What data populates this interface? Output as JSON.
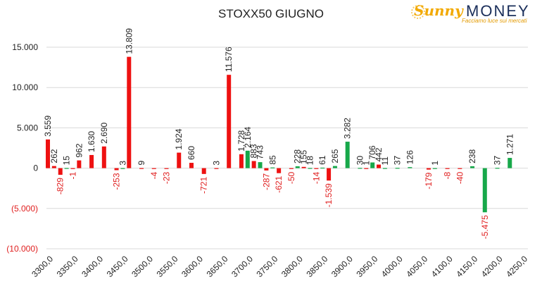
{
  "title": "STOXX50 GIUGNO",
  "logo": {
    "script": "Sunny",
    "word": "MONEY",
    "tagline": "Facciamo luce sui mercati"
  },
  "colors": {
    "red": "#ee1111",
    "green": "#17a84a",
    "grid": "#d9d9d9",
    "text": "#222222",
    "neg_text": "#e02020"
  },
  "chart_data": {
    "type": "bar",
    "title": "STOXX50 GIUGNO",
    "ylim": [
      -10000,
      15000
    ],
    "y_ticks": [
      15000,
      10000,
      5000,
      0,
      -5000,
      -10000
    ],
    "y_tick_labels": [
      "15.000",
      "10.000",
      "5.000",
      "0",
      "(5.000)",
      "(10.000)"
    ],
    "grid": true,
    "categories": [
      "3300,0",
      "3350,0",
      "3400,0",
      "3450,0",
      "3500,0",
      "3550,0",
      "3600,0",
      "3650,0",
      "3700,0",
      "3750,0",
      "3800,0",
      "3850,0",
      "3900,0",
      "3950,0",
      "4000,0",
      "4050,0",
      "4100,0",
      "4150,0",
      "4200,0",
      "4250,0"
    ],
    "bars": [
      {
        "strike": 3300,
        "value": 3559,
        "label": "3.559",
        "series": "red"
      },
      {
        "strike": 3312.5,
        "value": 262,
        "label": "262",
        "series": "red"
      },
      {
        "strike": 3325,
        "value": -829,
        "label": "-829",
        "series": "red"
      },
      {
        "strike": 3337.5,
        "value": 15,
        "label": "15",
        "series": "green"
      },
      {
        "strike": 3350,
        "value": -1,
        "label": "-1",
        "series": "red"
      },
      {
        "strike": 3362.5,
        "value": 962,
        "label": "962",
        "series": "red"
      },
      {
        "strike": 3387.5,
        "value": 1630,
        "label": "1.630",
        "series": "red"
      },
      {
        "strike": 3412.5,
        "value": 2690,
        "label": "2.690",
        "series": "red"
      },
      {
        "strike": 3437.5,
        "value": -253,
        "label": "-253",
        "series": "red"
      },
      {
        "strike": 3450,
        "value": 3,
        "label": "3",
        "series": "green"
      },
      {
        "strike": 3462.5,
        "value": 13809,
        "label": "13.809",
        "series": "red"
      },
      {
        "strike": 3487.5,
        "value": 9,
        "label": "9",
        "series": "red"
      },
      {
        "strike": 3512.5,
        "value": -4,
        "label": "-4",
        "series": "red"
      },
      {
        "strike": 3537.5,
        "value": -23,
        "label": "-23",
        "series": "red"
      },
      {
        "strike": 3562.5,
        "value": 1924,
        "label": "1.924",
        "series": "red"
      },
      {
        "strike": 3587.5,
        "value": 660,
        "label": "660",
        "series": "red"
      },
      {
        "strike": 3612.5,
        "value": -721,
        "label": "-721",
        "series": "red"
      },
      {
        "strike": 3637.5,
        "value": 3,
        "label": "3",
        "series": "red"
      },
      {
        "strike": 3662.5,
        "value": 11576,
        "label": "11.576",
        "series": "red"
      },
      {
        "strike": 3687.5,
        "value": 1728,
        "label": "1.728",
        "series": "red"
      },
      {
        "strike": 3700,
        "value": 2164,
        "label": "2.164",
        "series": "green"
      },
      {
        "strike": 3712.5,
        "value": 883,
        "label": "883",
        "series": "red"
      },
      {
        "strike": 3725,
        "value": 743,
        "label": "743",
        "series": "green"
      },
      {
        "strike": 3737.5,
        "value": -287,
        "label": "-287",
        "series": "red"
      },
      {
        "strike": 3750,
        "value": 85,
        "label": "85",
        "series": "green"
      },
      {
        "strike": 3762.5,
        "value": -621,
        "label": "-621",
        "series": "red"
      },
      {
        "strike": 3787.5,
        "value": -50,
        "label": "-50",
        "series": "red"
      },
      {
        "strike": 3800,
        "value": 228,
        "label": "228",
        "series": "green"
      },
      {
        "strike": 3812.5,
        "value": 155,
        "label": "155",
        "series": "red"
      },
      {
        "strike": 3825,
        "value": 18,
        "label": "18",
        "series": "green"
      },
      {
        "strike": 3837.5,
        "value": -14,
        "label": "-14",
        "series": "red"
      },
      {
        "strike": 3850,
        "value": 61,
        "label": "61",
        "series": "green"
      },
      {
        "strike": 3862.5,
        "value": -1539,
        "label": "-1.539",
        "series": "red"
      },
      {
        "strike": 3875,
        "value": 265,
        "label": "265",
        "series": "green"
      },
      {
        "strike": 3900,
        "value": 3282,
        "label": "3.282",
        "series": "green"
      },
      {
        "strike": 3925,
        "value": 30,
        "label": "30",
        "series": "green"
      },
      {
        "strike": 3937.5,
        "value": 1,
        "label": "1",
        "series": "red"
      },
      {
        "strike": 3950,
        "value": 706,
        "label": "706",
        "series": "green"
      },
      {
        "strike": 3962.5,
        "value": 442,
        "label": "442",
        "series": "red"
      },
      {
        "strike": 3975,
        "value": 11,
        "label": "11",
        "series": "green"
      },
      {
        "strike": 4000,
        "value": 37,
        "label": "37",
        "series": "green"
      },
      {
        "strike": 4025,
        "value": 126,
        "label": "126",
        "series": "green"
      },
      {
        "strike": 4062.5,
        "value": -179,
        "label": "-179",
        "series": "red"
      },
      {
        "strike": 4075,
        "value": 1,
        "label": "1",
        "series": "green"
      },
      {
        "strike": 4100,
        "value": -8,
        "label": "-8",
        "series": "red"
      },
      {
        "strike": 4125,
        "value": -40,
        "label": "-40",
        "series": "red"
      },
      {
        "strike": 4150,
        "value": 238,
        "label": "238",
        "series": "green"
      },
      {
        "strike": 4175,
        "value": -5475,
        "label": "-5.475",
        "series": "green"
      },
      {
        "strike": 4200,
        "value": 37,
        "label": "37",
        "series": "green"
      },
      {
        "strike": 4225,
        "value": 1271,
        "label": "1.271",
        "series": "green"
      }
    ]
  }
}
